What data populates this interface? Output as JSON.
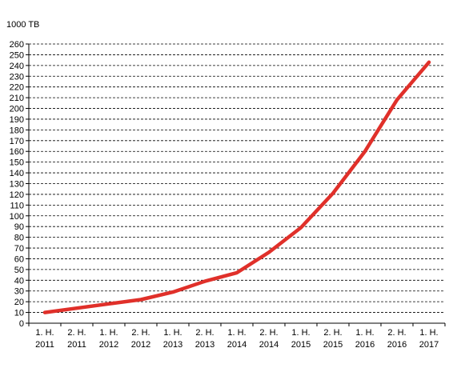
{
  "chart_data": {
    "type": "line",
    "unit_label": "1000 TB",
    "categories": [
      [
        "1. H.",
        "2011"
      ],
      [
        "2. H.",
        "2011"
      ],
      [
        "1. H.",
        "2012"
      ],
      [
        "2. H.",
        "2012"
      ],
      [
        "1. H.",
        "2013"
      ],
      [
        "2. H.",
        "2013"
      ],
      [
        "1. H.",
        "2014"
      ],
      [
        "2. H.",
        "2014"
      ],
      [
        "1. H.",
        "2015"
      ],
      [
        "2. H.",
        "2015"
      ],
      [
        "1. H.",
        "2016"
      ],
      [
        "2. H.",
        "2016"
      ],
      [
        "1. H.",
        "2017"
      ]
    ],
    "series": [
      {
        "values": [
          10,
          14,
          18,
          22,
          29,
          39,
          47,
          66,
          89,
          121,
          160,
          208,
          243
        ],
        "color": "#e0302a"
      }
    ],
    "ylim": [
      0,
      260
    ],
    "ytick_step": 10,
    "grid": true,
    "title": "",
    "xlabel": "",
    "ylabel": ""
  }
}
